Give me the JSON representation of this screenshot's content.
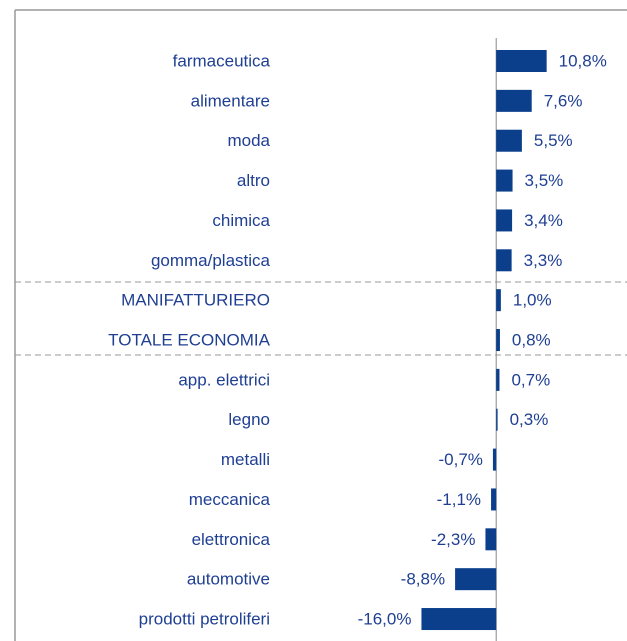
{
  "chart_data": {
    "type": "bar",
    "orientation": "horizontal",
    "categories": [
      "farmaceutica",
      "alimentare",
      "moda",
      "altro",
      "chimica",
      "gomma/plastica",
      "MANIFATTURIERO",
      "TOTALE ECONOMIA",
      "app. elettrici",
      "legno",
      "metalli",
      "meccanica",
      "elettronica",
      "automotive",
      "prodotti petroliferi"
    ],
    "values": [
      10.8,
      7.6,
      5.5,
      3.5,
      3.4,
      3.3,
      1.0,
      0.8,
      0.7,
      0.3,
      -0.7,
      -1.1,
      -2.3,
      -8.8,
      -16.0
    ],
    "value_labels": [
      "10,8%",
      "7,6%",
      "5,5%",
      "3,5%",
      "3,4%",
      "3,3%",
      "1,0%",
      "0,8%",
      "0,7%",
      "0,3%",
      "-0,7%",
      "-1,1%",
      "-2,3%",
      "-8,8%",
      "-16,0%"
    ],
    "color": "#0b3f8c",
    "xlim": [
      -42,
      28
    ]
  }
}
